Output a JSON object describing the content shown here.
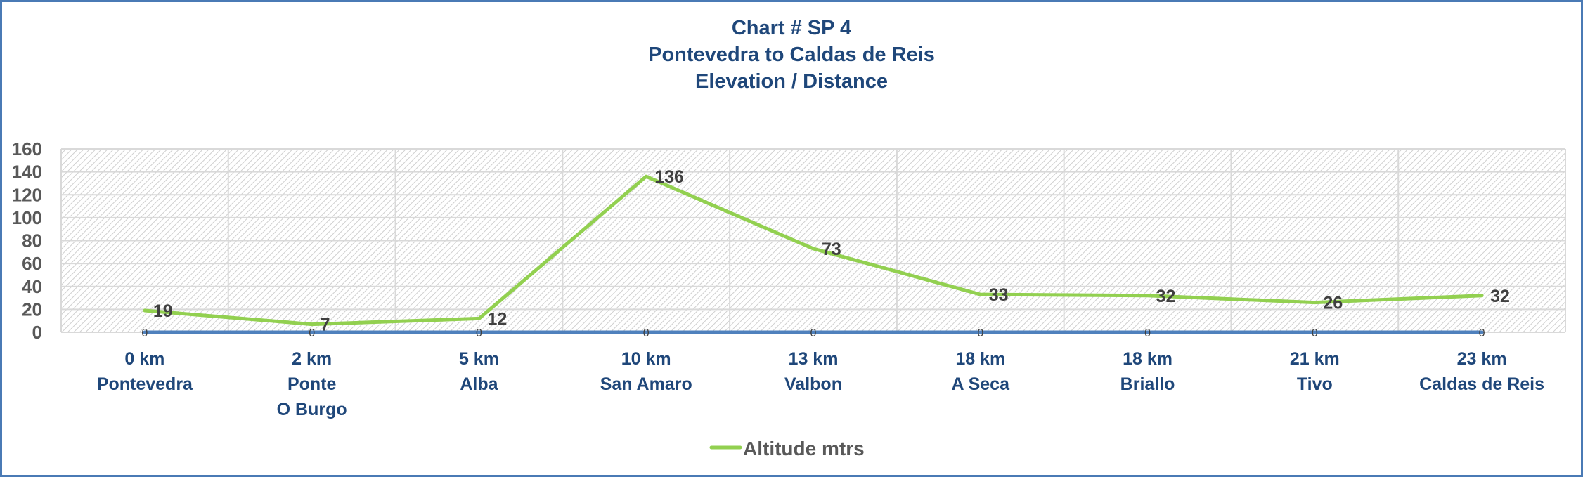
{
  "chart": {
    "title_lines": [
      "Chart # SP 4",
      "Pontevedra to Caldas de Reis",
      "Elevation / Distance"
    ],
    "legend_label": "Altitude  mtrs"
  },
  "colors": {
    "border": "#4a7ab5",
    "title": "#1f477a",
    "altitude_line": "#92d050",
    "baseline_series": "#4f81bd",
    "gridline": "#d9d9d9"
  },
  "chart_data": {
    "type": "line",
    "title": "Chart # SP 4 — Pontevedra to Caldas de Reis — Elevation / Distance",
    "categories": [
      [
        "0 km",
        "Pontevedra"
      ],
      [
        "2  km",
        "Ponte",
        "O Burgo"
      ],
      [
        "5 km",
        "Alba"
      ],
      [
        "10 km",
        "San Amaro"
      ],
      [
        "13 km",
        "Valbon"
      ],
      [
        "18 km",
        "A Seca"
      ],
      [
        "18 km",
        "Briallo"
      ],
      [
        "21 km",
        "Tivo"
      ],
      [
        "23 km",
        "Caldas de Reis"
      ]
    ],
    "series": [
      {
        "name": "Altitude  mtrs",
        "values": [
          19,
          7,
          12,
          136,
          73,
          33,
          32,
          26,
          32
        ],
        "color": "#92d050",
        "in_legend": true
      },
      {
        "name": "",
        "values": [
          0,
          0,
          0,
          0,
          0,
          0,
          0,
          0,
          0
        ],
        "color": "#4f81bd",
        "in_legend": false
      }
    ],
    "xlabel": "",
    "ylabel": "",
    "ylim": [
      0,
      160
    ],
    "yticks": [
      0,
      20,
      40,
      60,
      80,
      100,
      120,
      140,
      160
    ],
    "grid": true,
    "legend_position": "bottom",
    "data_labels": true,
    "plot_background": "diagonal hatch"
  }
}
